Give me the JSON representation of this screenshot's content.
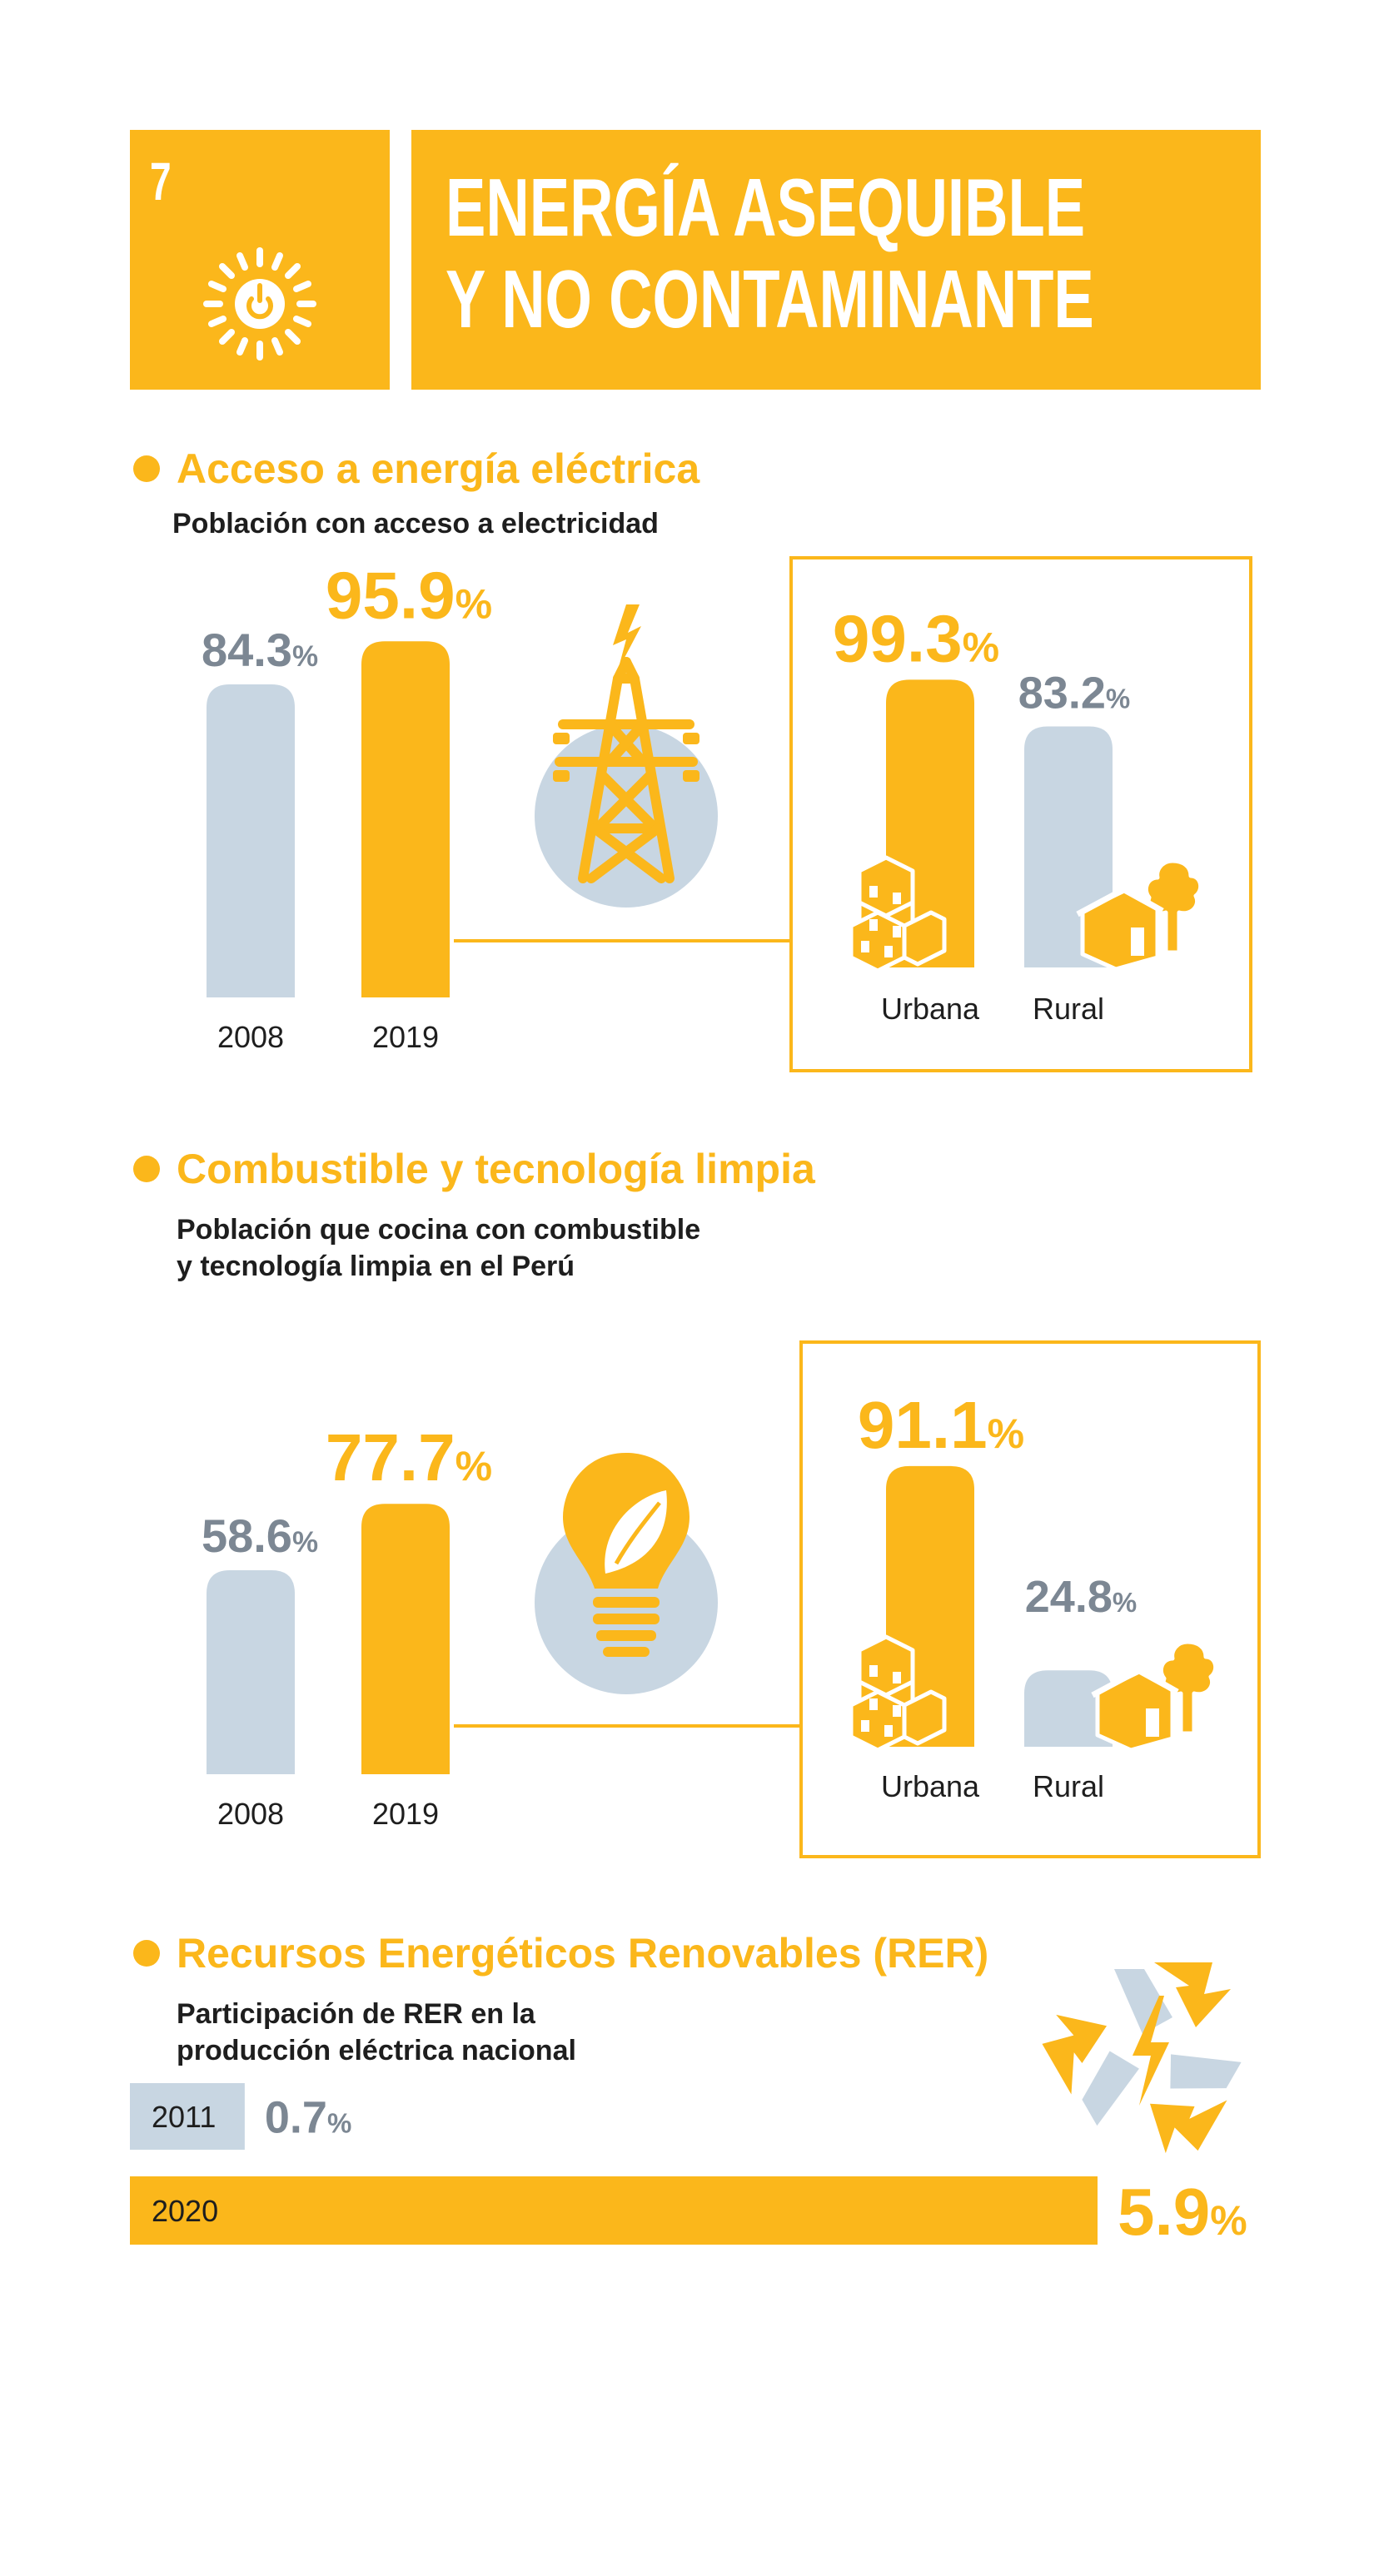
{
  "header": {
    "goal_number": "7",
    "title_line1": "ENERGÍA ASEQUIBLE",
    "title_line2": "Y NO CONTAMINANTE",
    "icon": "sun-power-icon"
  },
  "colors": {
    "accent": "#FBB71B",
    "light_bar": "#C8D6E2",
    "gray_text": "#7C8793",
    "dark_text": "#1E1E1E",
    "white": "#FFFFFF"
  },
  "sections": {
    "electricity": {
      "title": "Acceso a energía eléctrica",
      "subtitle": "Población con acceso a electricidad",
      "icon": "power-tower-icon"
    },
    "cooking": {
      "title": "Combustible y tecnología limpia",
      "subtitle_line1": "Población que cocina con combustible",
      "subtitle_line2": "y tecnología limpia en el Perú",
      "icon": "eco-lightbulb-icon"
    },
    "renewables": {
      "title": "Recursos Energéticos Renovables (RER)",
      "subtitle_line1": "Participación de RER en la",
      "subtitle_line2": "producción eléctrica nacional",
      "icon": "recycle-bolt-icon"
    }
  },
  "chart_data": [
    {
      "type": "bar",
      "categories": [
        "2008",
        "2019"
      ],
      "values": [
        84.3,
        95.9
      ],
      "labels": [
        "84.3%",
        "95.9%"
      ],
      "unit": "%",
      "ylim": [
        0,
        100
      ]
    },
    {
      "type": "bar",
      "categories": [
        "Urbana",
        "Rural"
      ],
      "values": [
        99.3,
        83.2
      ],
      "labels": [
        "99.3%",
        "83.2%"
      ],
      "unit": "%",
      "ylim": [
        0,
        100
      ]
    },
    {
      "type": "bar",
      "categories": [
        "2008",
        "2019"
      ],
      "values": [
        58.6,
        77.7
      ],
      "labels": [
        "58.6%",
        "77.7%"
      ],
      "unit": "%",
      "ylim": [
        0,
        100
      ]
    },
    {
      "type": "bar",
      "categories": [
        "Urbana",
        "Rural"
      ],
      "values": [
        91.1,
        24.8
      ],
      "labels": [
        "91.1%",
        "24.8%"
      ],
      "unit": "%",
      "ylim": [
        0,
        100
      ]
    },
    {
      "type": "bar",
      "orientation": "horizontal",
      "categories": [
        "2011",
        "2020"
      ],
      "values": [
        0.7,
        5.9
      ],
      "labels": [
        "0.7%",
        "5.9%"
      ],
      "unit": "%",
      "ylim": [
        0,
        5.9
      ]
    }
  ]
}
